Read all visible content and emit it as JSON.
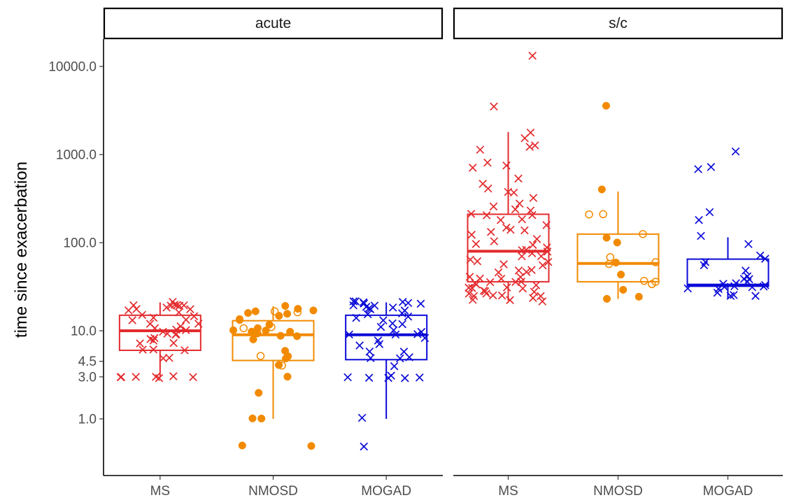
{
  "chart_data": {
    "type": "box",
    "ylabel": "time since exacerbation",
    "yscale": "log10",
    "ylim": [
      0.37,
      22000
    ],
    "yticks": [
      1.0,
      3.0,
      4.5,
      10.0,
      100.0,
      1000.0,
      10000.0
    ],
    "ytick_labels": [
      "1.0",
      "3.0",
      "4.5",
      "10.0",
      "100.0",
      "1000.0",
      "10000.0"
    ],
    "categories": [
      "MS",
      "NMOSD",
      "MOGAD"
    ],
    "colors": {
      "MS": "#e32b2e",
      "NMOSD": "#f28a00",
      "MOGAD": "#0a0ad8"
    },
    "marker_legend": {
      "MS": "x",
      "MOGAD": "x",
      "NMOSD": "filled or open circle"
    },
    "panels": [
      {
        "strip": "acute",
        "boxes": [
          {
            "group": "MS",
            "whisker_low": 3,
            "q1": 6,
            "median": 10,
            "q3": 15,
            "whisker_high": 21
          },
          {
            "group": "NMOSD",
            "whisker_low": 1,
            "q1": 4.6,
            "median": 9,
            "q3": 13,
            "whisker_high": 19
          },
          {
            "group": "MOGAD",
            "whisker_low": 1,
            "q1": 4.7,
            "median": 9,
            "q3": 15,
            "whisker_high": 21
          }
        ],
        "points": [
          {
            "group": "MS",
            "values": [
              21,
              20,
              20,
              20,
              20,
              19,
              19,
              18,
              18,
              18,
              17,
              16,
              15,
              15,
              14,
              13,
              13,
              12,
              12,
              11,
              11,
              10,
              10,
              10,
              9,
              9,
              9,
              8,
              8,
              8,
              7,
              7,
              6,
              6,
              6,
              5,
              5,
              3,
              3,
              3,
              3,
              3,
              3,
              3
            ],
            "marker": "x"
          },
          {
            "group": "NMOSD",
            "values": [
              19,
              18,
              17,
              17,
              16,
              16,
              15,
              14,
              13,
              12,
              11,
              10,
              10,
              10,
              10,
              9,
              9,
              9,
              8,
              6,
              5,
              5,
              5,
              4,
              3,
              2,
              1,
              1,
              0.5,
              0.5
            ],
            "marker": "filled circle"
          },
          {
            "group": "NMOSD",
            "values": [
              17,
              16,
              11,
              11,
              5,
              4
            ],
            "marker": "open circle"
          },
          {
            "group": "MOGAD",
            "values": [
              21,
              21,
              21,
              21,
              21,
              20,
              20,
              20,
              20,
              19,
              19,
              18,
              18,
              17,
              16,
              15,
              14,
              14,
              13,
              12,
              12,
              11,
              10,
              10,
              9,
              9,
              9,
              8,
              8,
              7,
              7,
              6,
              6,
              5,
              5,
              5,
              4,
              3,
              3,
              3,
              3,
              3,
              3,
              1,
              0.5
            ],
            "marker": "x"
          }
        ]
      },
      {
        "strip": "s/c",
        "boxes": [
          {
            "group": "MS",
            "whisker_low": 22,
            "q1": 36,
            "median": 80,
            "q3": 210,
            "whisker_high": 1800
          },
          {
            "group": "NMOSD",
            "whisker_low": 23,
            "q1": 36,
            "median": 58,
            "q3": 125,
            "whisker_high": 380
          },
          {
            "group": "MOGAD",
            "whisker_low": 23,
            "q1": 32,
            "median": 33,
            "q3": 65,
            "whisker_high": 115
          }
        ],
        "points": [
          {
            "group": "MS",
            "values": [
              13000,
              3600,
              1800,
              1500,
              1300,
              1200,
              1100,
              800,
              750,
              700,
              550,
              450,
              420,
              380,
              360,
              320,
              280,
              250,
              240,
              230,
              220,
              210,
              200,
              190,
              180,
              160,
              150,
              140,
              140,
              130,
              120,
              110,
              100,
              100,
              95,
              90,
              85,
              80,
              80,
              75,
              70,
              70,
              65,
              60,
              60,
              55,
              55,
              50,
              50,
              45,
              45,
              42,
              40,
              40,
              38,
              36,
              35,
              35,
              34,
              33,
              32,
              32,
              31,
              30,
              30,
              29,
              28,
              28,
              27,
              26,
              25,
              25,
              24,
              24,
              23,
              23,
              22,
              22
            ],
            "marker": "x"
          },
          {
            "group": "NMOSD",
            "values": [
              3700,
              390,
              115,
              100,
              60,
              42,
              30,
              25,
              23
            ],
            "marker": "filled circle"
          },
          {
            "group": "NMOSD",
            "values": [
              210,
              210,
              125,
              70,
              60,
              57,
              37,
              35,
              35
            ],
            "marker": "open circle"
          },
          {
            "group": "MOGAD",
            "values": [
              1100,
              720,
              700,
              215,
              185,
              115,
              95,
              70,
              65,
              60,
              55,
              48,
              42,
              40,
              38,
              35,
              34,
              33,
              33,
              32,
              32,
              31,
              31,
              30,
              29,
              27,
              26,
              24,
              24
            ],
            "marker": "x"
          }
        ]
      }
    ]
  }
}
